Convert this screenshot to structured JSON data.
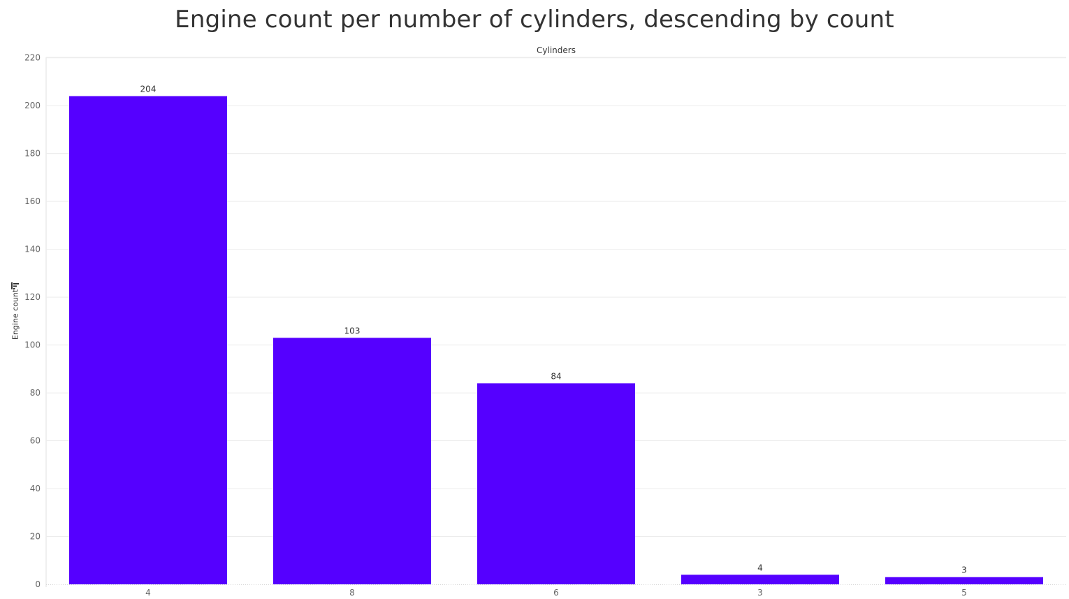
{
  "title": "Engine count per number of cylinders, descending by count",
  "x_header": "Cylinders",
  "y_axis_label": "Engine count",
  "icons": {
    "sort": "sort-descending-icon"
  },
  "colors": {
    "bar": "#5500ff",
    "grid": "#ececec",
    "tick_text": "#666666",
    "value_label": "#333333"
  },
  "chart_data": {
    "type": "bar",
    "title": "Engine count per number of cylinders, descending by count",
    "xlabel": "Cylinders",
    "ylabel": "Engine count",
    "categories": [
      "4",
      "8",
      "6",
      "3",
      "5"
    ],
    "values": [
      204,
      103,
      84,
      4,
      3
    ],
    "ylim": [
      0,
      220
    ],
    "yticks": [
      0,
      20,
      40,
      60,
      80,
      100,
      120,
      140,
      160,
      180,
      200,
      220
    ],
    "grid": true,
    "data_labels": true,
    "legend": "none"
  }
}
